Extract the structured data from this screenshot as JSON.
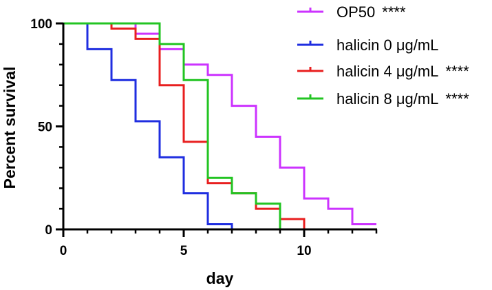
{
  "chart_data": {
    "type": "line",
    "subtype": "survival-step",
    "title": "",
    "xlabel": "day",
    "ylabel": "Percent survival",
    "xlim": [
      0,
      13
    ],
    "ylim": [
      0,
      100
    ],
    "x_ticks": [
      0,
      5,
      10
    ],
    "y_ticks": [
      0,
      50,
      100
    ],
    "x_ticks_minor_step": 1,
    "y_ticks_minor_step": 10,
    "grid": false,
    "legend_position": "top-right",
    "series": [
      {
        "name": "OP50",
        "name_text": "OP50",
        "significance": "****",
        "color": "#cc33ff",
        "steps": [
          [
            0,
            100
          ],
          [
            3,
            95
          ],
          [
            4,
            87.5
          ],
          [
            5,
            80
          ],
          [
            6,
            75
          ],
          [
            7,
            60
          ],
          [
            8,
            45
          ],
          [
            9,
            30
          ],
          [
            10,
            15
          ],
          [
            11,
            10
          ],
          [
            12,
            2.5
          ],
          [
            13,
            2.5
          ]
        ]
      },
      {
        "name": "halicin 0 μg/mL",
        "name_text": "halicin 0 μg/mL",
        "significance": "",
        "color": "#1f2ee0",
        "steps": [
          [
            0,
            100
          ],
          [
            1,
            87.5
          ],
          [
            2,
            72.5
          ],
          [
            3,
            52.5
          ],
          [
            4,
            35
          ],
          [
            5,
            17.5
          ],
          [
            6,
            2.5
          ],
          [
            7,
            0
          ]
        ]
      },
      {
        "name": "halicin 4 μg/mL",
        "name_text": "halicin 4 μg/mL",
        "significance": "****",
        "color": "#e81f1f",
        "steps": [
          [
            0,
            100
          ],
          [
            2,
            97.5
          ],
          [
            3,
            92.5
          ],
          [
            4,
            70
          ],
          [
            5,
            42.5
          ],
          [
            6,
            22.5
          ],
          [
            7,
            17.5
          ],
          [
            8,
            10
          ],
          [
            9,
            5
          ],
          [
            10,
            0
          ]
        ]
      },
      {
        "name": "halicin 8 μg/mL",
        "name_text": "halicin 8 μg/mL",
        "significance": "****",
        "color": "#22c422",
        "steps": [
          [
            0,
            100
          ],
          [
            4,
            90
          ],
          [
            5,
            72.5
          ],
          [
            6,
            25
          ],
          [
            7,
            17.5
          ],
          [
            8,
            12.5
          ],
          [
            9,
            0
          ]
        ]
      }
    ]
  }
}
